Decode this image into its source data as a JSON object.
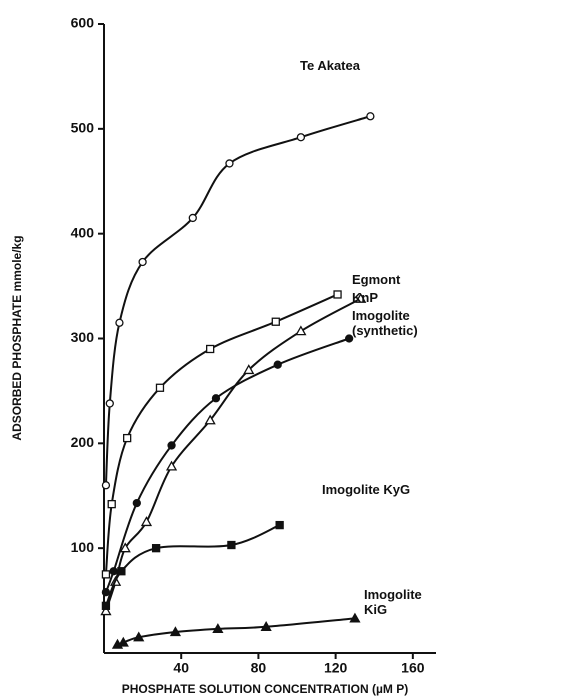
{
  "chart_data": {
    "type": "scatter",
    "xlabel": "PHOSPHATE SOLUTION CONCENTRATION  (µM P)",
    "ylabel": "ADSORBED PHOSPHATE  mmole/kg",
    "xlim": [
      0,
      172
    ],
    "xticks": [
      40,
      80,
      120,
      160
    ],
    "ylim": [
      0,
      600
    ],
    "yticks": [
      100,
      200,
      300,
      400,
      500,
      600
    ],
    "series": [
      {
        "name": "Te Akatea",
        "marker": "circle-open",
        "color": "#111",
        "x": [
          1,
          3,
          8,
          20,
          46,
          65,
          102,
          138
        ],
        "values": [
          160,
          238,
          315,
          373,
          415,
          467,
          492,
          512
        ]
      },
      {
        "name": "Egmont",
        "marker": "square-open",
        "color": "#111",
        "x": [
          1,
          4,
          12,
          29,
          55,
          89,
          121
        ],
        "values": [
          75,
          142,
          205,
          253,
          290,
          316,
          342
        ]
      },
      {
        "name": "KnP",
        "marker": "triangle-open",
        "color": "#111",
        "x": [
          1,
          6,
          11,
          22,
          35,
          55,
          75,
          102,
          133
        ],
        "values": [
          40,
          68,
          100,
          125,
          178,
          222,
          270,
          307,
          338
        ]
      },
      {
        "name": "Imogolite (synthetic)",
        "marker": "circle-filled",
        "color": "#111",
        "x": [
          1,
          5,
          17,
          35,
          58,
          90,
          127
        ],
        "values": [
          58,
          78,
          143,
          198,
          243,
          275,
          300
        ]
      },
      {
        "name": "Imogolite KyG",
        "marker": "square-filled",
        "color": "#111",
        "x": [
          1,
          9,
          27,
          66,
          91
        ],
        "values": [
          45,
          78,
          100,
          103,
          122
        ]
      },
      {
        "name": "Imogolite KiG",
        "marker": "triangle-filled",
        "color": "#111",
        "x": [
          7,
          10,
          18,
          37,
          59,
          84,
          130
        ],
        "values": [
          8,
          10,
          15,
          20,
          23,
          25,
          33
        ]
      }
    ]
  }
}
